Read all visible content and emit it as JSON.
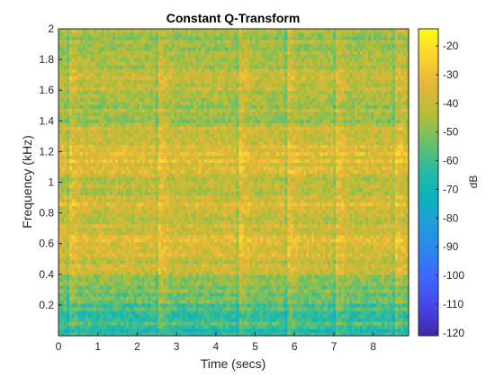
{
  "chart_data": {
    "type": "heatmap",
    "title": "Constant Q-Transform",
    "xlabel": "Time (secs)",
    "ylabel": "Frequency (kHz)",
    "colorbar_label": "dB",
    "colormap": "parula",
    "xlim": [
      0,
      8.9
    ],
    "ylim": [
      0,
      2
    ],
    "clim": [
      -121,
      -14
    ],
    "x_ticks": [
      0,
      1,
      2,
      3,
      4,
      5,
      6,
      7,
      8
    ],
    "y_ticks": [
      0.2,
      0.4,
      0.6,
      0.8,
      1,
      1.2,
      1.4,
      1.6,
      1.8,
      2
    ],
    "colorbar_ticks": [
      -20,
      -30,
      -40,
      -50,
      -60,
      -70,
      -80,
      -90,
      -100,
      -110,
      -120
    ],
    "grid": false,
    "band_levels_db": [
      {
        "freq_khz": 0.1,
        "level_db": -60
      },
      {
        "freq_khz": 0.25,
        "level_db": -55
      },
      {
        "freq_khz": 0.4,
        "level_db": -45
      },
      {
        "freq_khz": 0.58,
        "level_db": -35
      },
      {
        "freq_khz": 0.7,
        "level_db": -40
      },
      {
        "freq_khz": 0.85,
        "level_db": -38
      },
      {
        "freq_khz": 1.0,
        "level_db": -45
      },
      {
        "freq_khz": 1.15,
        "level_db": -32
      },
      {
        "freq_khz": 1.4,
        "level_db": -45
      },
      {
        "freq_khz": 1.72,
        "level_db": -42
      },
      {
        "freq_khz": 1.9,
        "level_db": -48
      }
    ],
    "onset_times_secs": [
      0.25,
      2.55,
      4.6,
      5.8,
      7.05,
      8.55
    ]
  },
  "colors": {
    "axes": "#262626",
    "colorbar_stops": [
      "#3e26a8",
      "#4743e8",
      "#3d65fd",
      "#2d84f2",
      "#1e9ed8",
      "#0db1be",
      "#2bbc9f",
      "#71c065",
      "#b9bd36",
      "#e8b63b",
      "#fbd42f",
      "#f9fb15"
    ]
  }
}
